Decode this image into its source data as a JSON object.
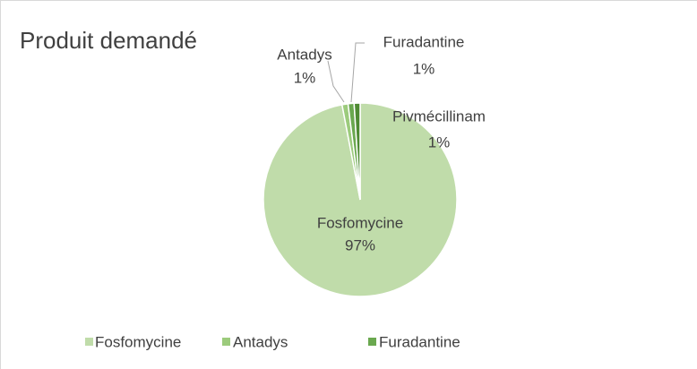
{
  "chart_data": {
    "type": "pie",
    "title": "Produit demandé",
    "categories": [
      "Fosfomycine",
      "Antadys",
      "Furadantine",
      "Pivmécillinam"
    ],
    "values": [
      97,
      1,
      1,
      1
    ],
    "value_labels": [
      "97%",
      "1%",
      "1%",
      "1%"
    ],
    "colors": [
      "#c0dcaa",
      "#9ccb7c",
      "#6aa84f",
      "#4e8a33"
    ],
    "legend": "bottom"
  }
}
